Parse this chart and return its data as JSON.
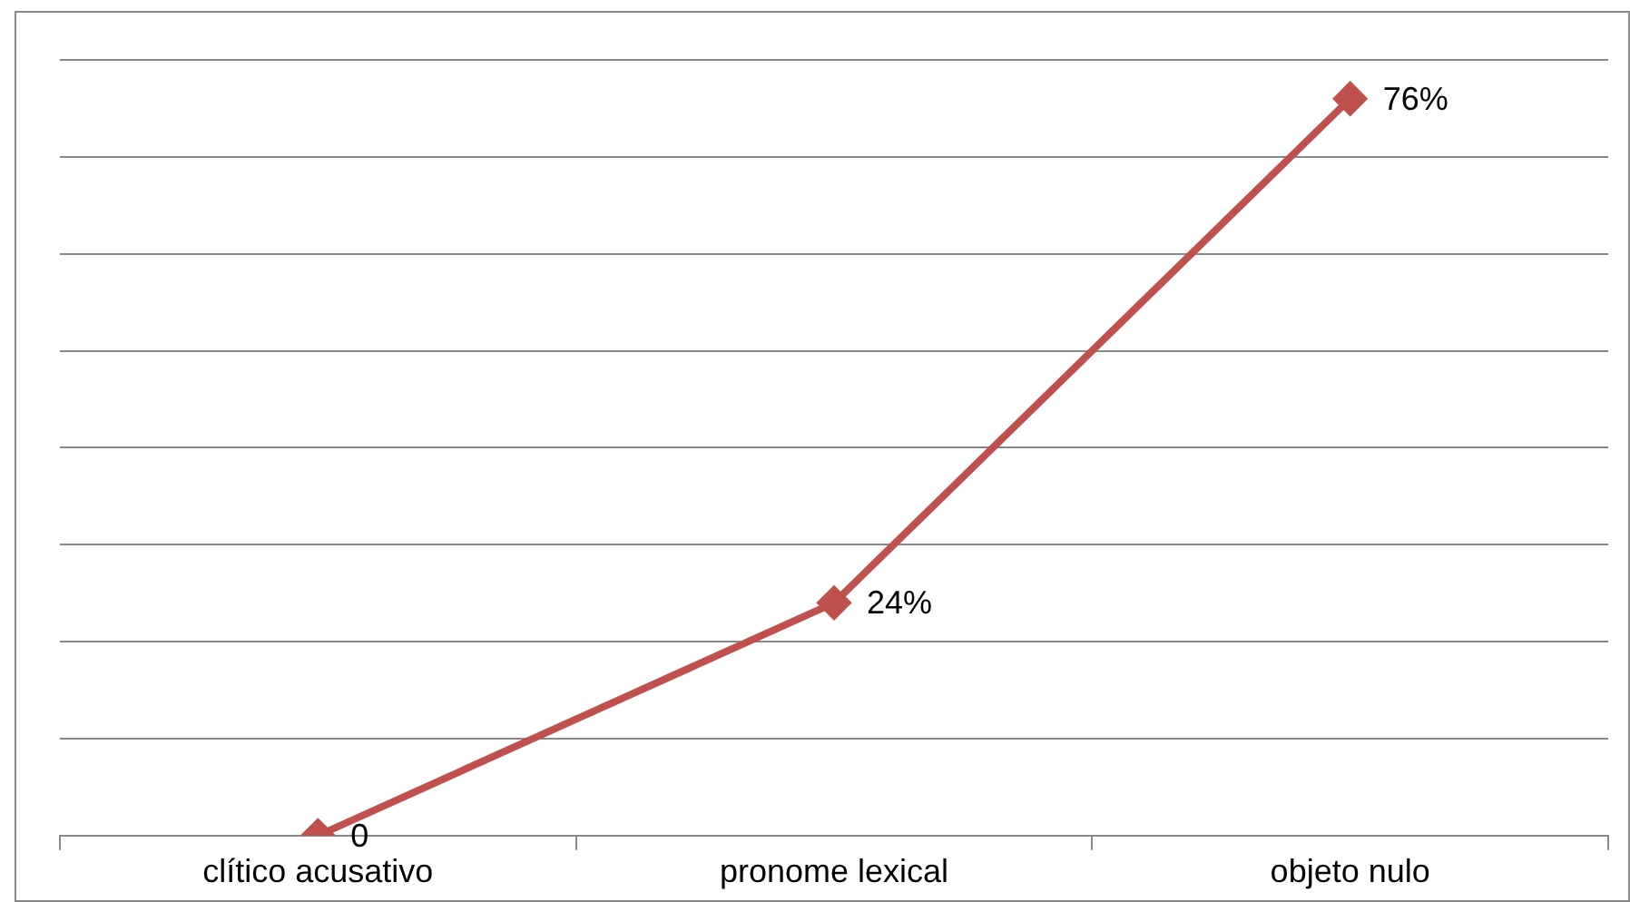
{
  "chart_data": {
    "type": "line",
    "categories": [
      "clítico acusativo",
      "pronome lexical",
      "objeto nulo"
    ],
    "series": [
      {
        "color": "#c0504d",
        "values": [
          0,
          24,
          76
        ],
        "value_labels": [
          "0",
          "24%",
          "76%"
        ]
      }
    ],
    "ylim": [
      0,
      80
    ],
    "yticks": [
      {
        "value": 0,
        "label": null
      },
      {
        "value": 10,
        "label": null
      },
      {
        "value": 20,
        "label": null
      },
      {
        "value": 30,
        "label": null
      },
      {
        "value": 40,
        "label": null
      },
      {
        "value": 50,
        "label": null
      },
      {
        "value": 60,
        "label": null
      },
      {
        "value": 70,
        "label": null
      },
      {
        "value": 80,
        "label": null
      }
    ],
    "grid": "y",
    "tick_labels": "x",
    "marker": "diamond",
    "line_style": "solid",
    "legend": false
  }
}
